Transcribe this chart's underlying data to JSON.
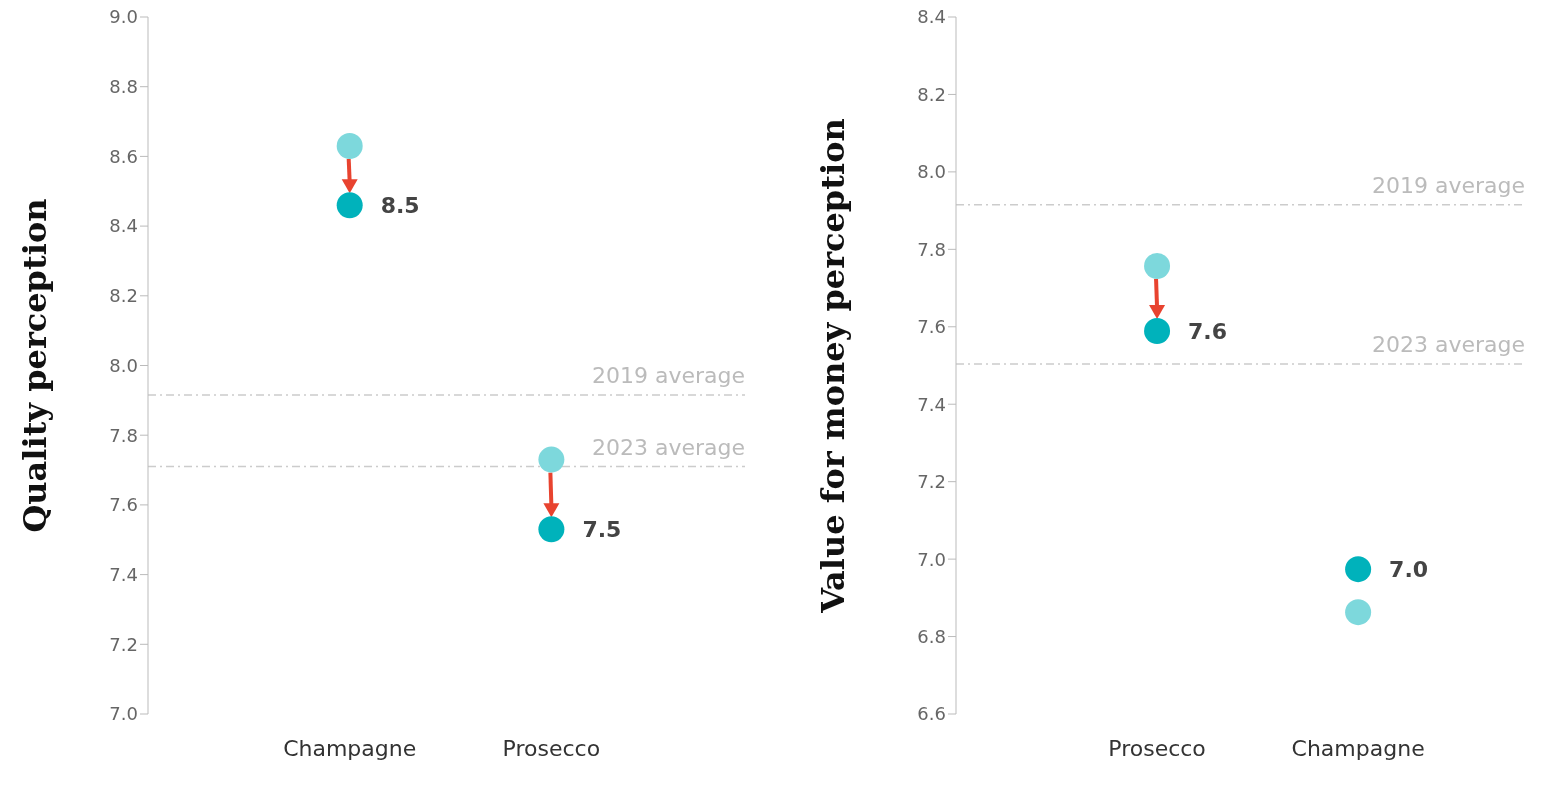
{
  "chart_data": [
    {
      "type": "scatter",
      "ylabel": "Quality perception",
      "categories": [
        "Champagne",
        "Prosecco"
      ],
      "marker": "circle",
      "series": [
        {
          "color": "#7dd8dc",
          "values": [
            8.63,
            7.73
          ]
        },
        {
          "color": "#00b2bb",
          "values": [
            8.46,
            7.53
          ],
          "value_labels": [
            "8.5",
            "7.5"
          ]
        }
      ],
      "ylim": [
        7.0,
        9.0
      ],
      "yticks": [
        {
          "value": 7,
          "label": "7.0"
        },
        7.2,
        7.4,
        7.6,
        7.8,
        {
          "value": 8,
          "label": "8.0"
        },
        8.2,
        8.4,
        8.6,
        8.8,
        {
          "value": 9,
          "label": "9.0"
        }
      ],
      "ref_lines": [
        {
          "axis": "y",
          "value": 7.915,
          "label": "2019 average",
          "color": "#cccccc",
          "line_style": "dashed"
        },
        {
          "axis": "y",
          "value": 7.71,
          "label": "2023 average",
          "color": "#cccccc",
          "line_style": "dashed"
        }
      ]
    },
    {
      "type": "scatter",
      "ylabel": "Value for money perception",
      "categories": [
        "Prosecco",
        "Champagne"
      ],
      "marker": "circle",
      "series": [
        {
          "color": "#7dd8dc",
          "values": [
            7.757,
            6.863
          ]
        },
        {
          "color": "#00b2bb",
          "values": [
            7.589,
            6.974
          ],
          "value_labels": [
            "7.6",
            "7.0"
          ]
        }
      ],
      "ylim": [
        6.6,
        8.4
      ],
      "yticks": [
        6.6,
        6.8,
        {
          "value": 7,
          "label": "7.0"
        },
        7.2,
        7.4,
        7.6,
        7.8,
        {
          "value": 8,
          "label": "8.0"
        },
        8.2,
        8.4
      ],
      "ref_lines": [
        {
          "axis": "y",
          "value": 7.915,
          "label": "2019 average",
          "color": "#cccccc",
          "line_style": "dashed"
        },
        {
          "axis": "y",
          "value": 7.504,
          "label": "2023 average",
          "color": "#cccccc",
          "line_style": "dashed"
        }
      ]
    }
  ]
}
